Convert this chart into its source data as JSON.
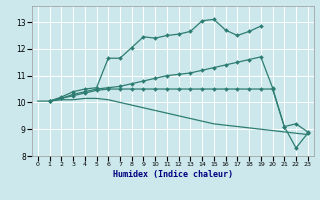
{
  "xlabel": "Humidex (Indice chaleur)",
  "ylabel": "",
  "bg_color": "#cce8ec",
  "grid_color": "#ffffff",
  "line_color": "#2e7d72",
  "xlim": [
    -0.5,
    23.5
  ],
  "ylim": [
    8,
    13.6
  ],
  "xticks": [
    0,
    1,
    2,
    3,
    4,
    5,
    6,
    7,
    8,
    9,
    10,
    11,
    12,
    13,
    14,
    15,
    16,
    17,
    18,
    19,
    20,
    21,
    22,
    23
  ],
  "yticks": [
    8,
    9,
    10,
    11,
    12,
    13
  ],
  "lines": [
    {
      "x": [
        1,
        2,
        3,
        4,
        5,
        6,
        7,
        8,
        9,
        10,
        11,
        12,
        13,
        14,
        15,
        16,
        17,
        18,
        19
      ],
      "y": [
        10.05,
        10.2,
        10.4,
        10.5,
        10.55,
        11.65,
        11.65,
        12.05,
        12.45,
        12.4,
        12.5,
        12.55,
        12.65,
        13.05,
        13.1,
        12.7,
        12.5,
        12.65,
        12.85
      ],
      "marker": "D",
      "markersize": 2.0,
      "linewidth": 0.9
    },
    {
      "x": [
        1,
        2,
        3,
        4,
        5,
        6,
        7,
        8,
        9,
        10,
        11,
        12,
        13,
        14,
        15,
        16,
        17,
        18,
        19,
        20,
        21,
        22,
        23
      ],
      "y": [
        10.05,
        10.15,
        10.3,
        10.4,
        10.5,
        10.55,
        10.6,
        10.7,
        10.8,
        10.9,
        11.0,
        11.05,
        11.1,
        11.2,
        11.3,
        11.4,
        11.5,
        11.6,
        11.7,
        10.55,
        9.1,
        9.2,
        8.9
      ],
      "marker": "D",
      "markersize": 2.0,
      "linewidth": 0.9
    },
    {
      "x": [
        1,
        2,
        3,
        4,
        5,
        6,
        7,
        8,
        9,
        10,
        11,
        12,
        13,
        14,
        15,
        16,
        17,
        18,
        19,
        20,
        21,
        22,
        23
      ],
      "y": [
        10.05,
        10.15,
        10.25,
        10.35,
        10.45,
        10.5,
        10.5,
        10.5,
        10.5,
        10.5,
        10.5,
        10.5,
        10.5,
        10.5,
        10.5,
        10.5,
        10.5,
        10.5,
        10.5,
        10.5,
        9.1,
        8.3,
        8.85
      ],
      "marker": "D",
      "markersize": 2.0,
      "linewidth": 0.9
    },
    {
      "x": [
        0,
        1,
        2,
        3,
        4,
        5,
        6,
        7,
        8,
        9,
        10,
        11,
        12,
        13,
        14,
        15,
        16,
        17,
        18,
        19,
        20,
        21,
        22,
        23
      ],
      "y": [
        10.05,
        10.05,
        10.1,
        10.1,
        10.15,
        10.15,
        10.1,
        10.0,
        9.9,
        9.8,
        9.7,
        9.6,
        9.5,
        9.4,
        9.3,
        9.2,
        9.15,
        9.1,
        9.05,
        9.0,
        8.95,
        8.9,
        8.85,
        8.8
      ],
      "marker": null,
      "markersize": 0,
      "linewidth": 0.9
    }
  ]
}
